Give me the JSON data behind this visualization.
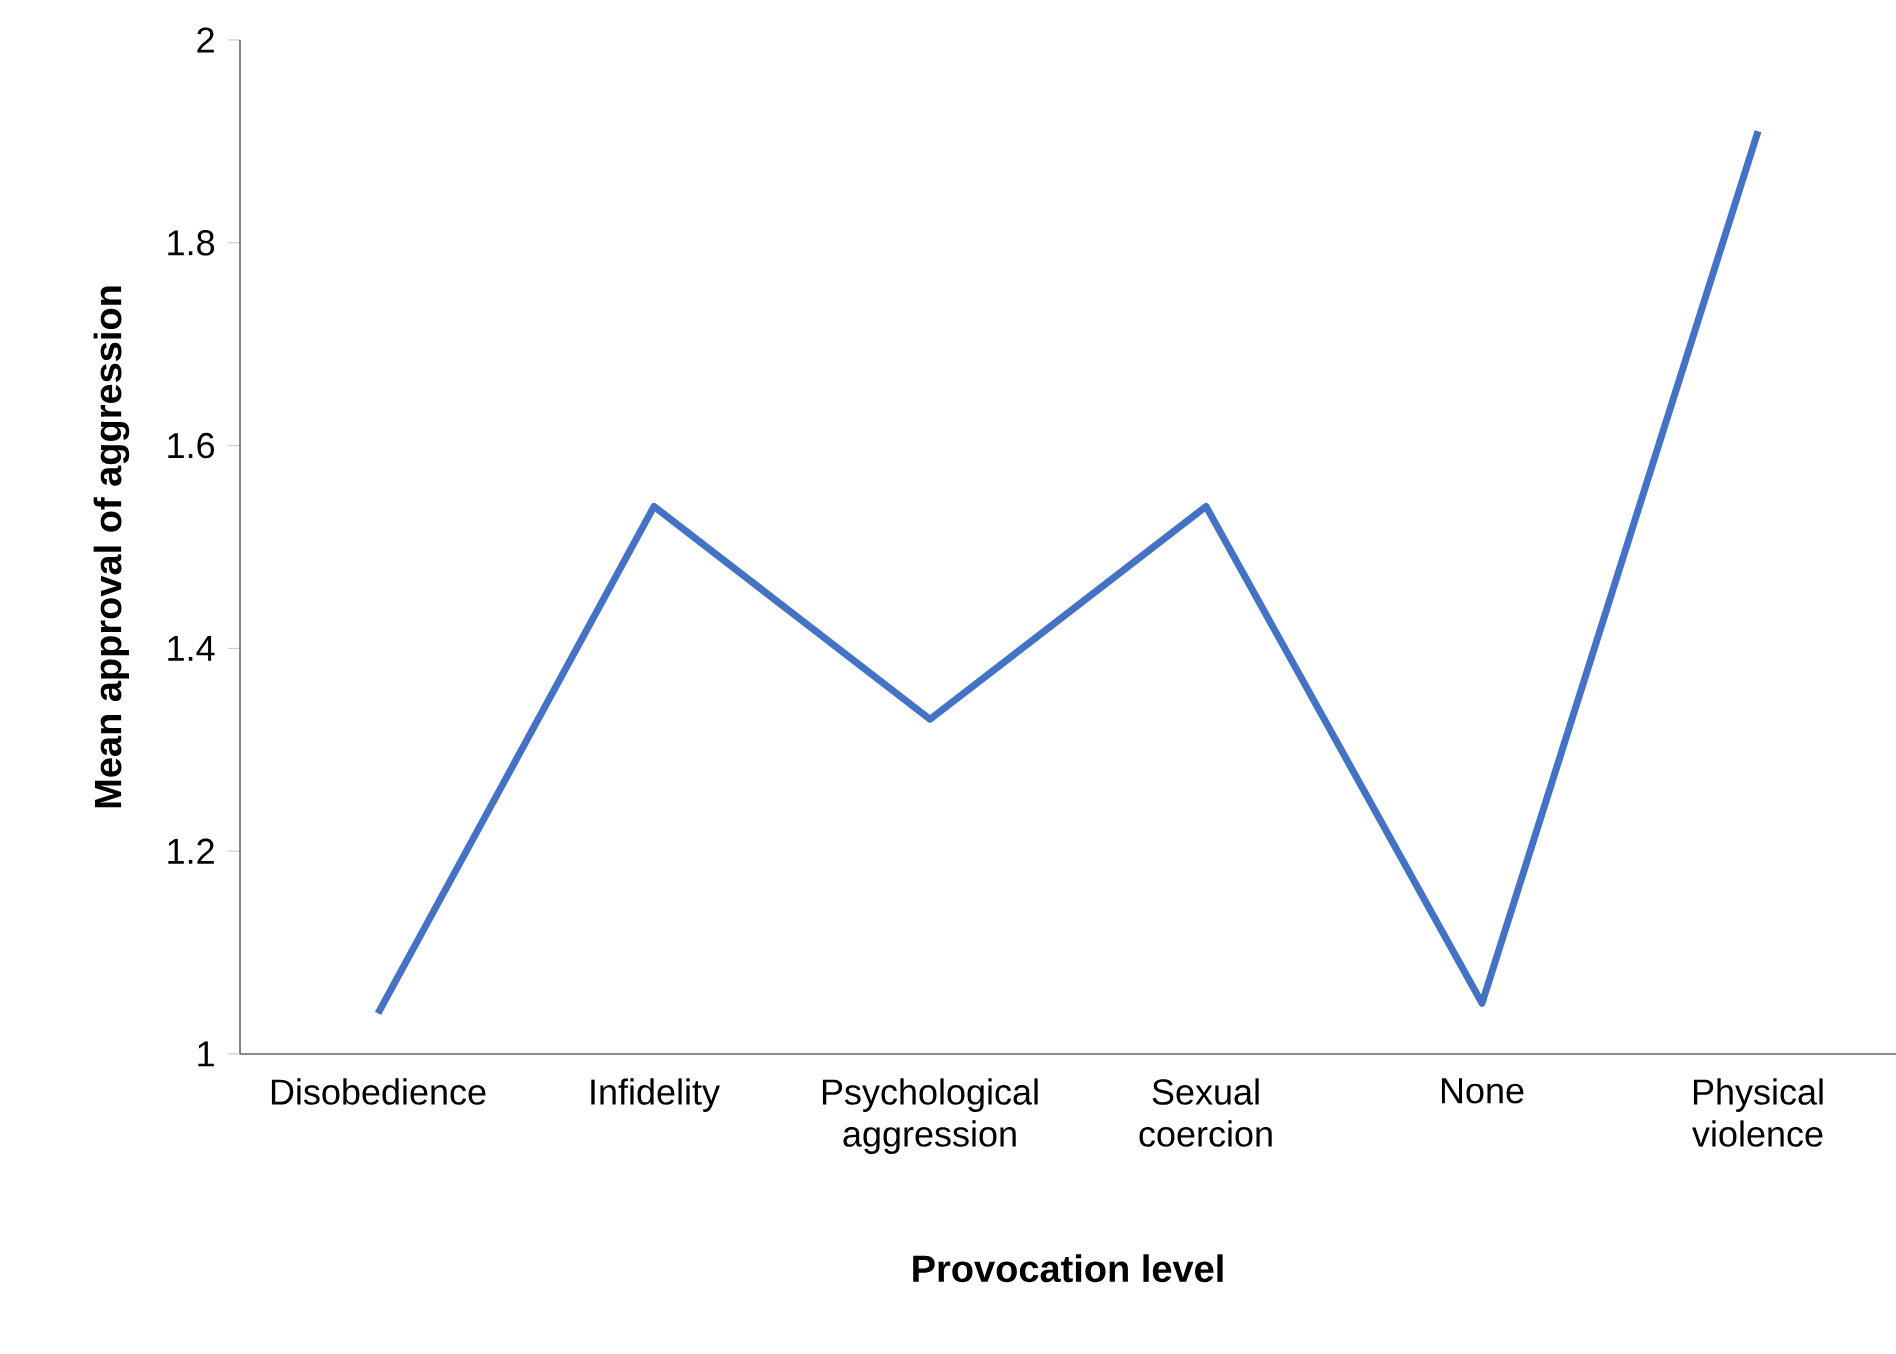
{
  "chart_data": {
    "type": "line",
    "xlabel": "Provocation level",
    "ylabel": "Mean approval of aggression",
    "categories": [
      "Disobedience",
      "Infidelity",
      "Psychological aggression",
      "Sexual coercion",
      "None",
      "Physical violence"
    ],
    "series": [
      {
        "color": "#4472c4",
        "values": [
          1.04,
          1.54,
          1.33,
          1.54,
          1.05,
          1.91
        ]
      }
    ],
    "ylim": [
      1,
      2
    ],
    "yticks": [
      1,
      1.2,
      1.4,
      1.6,
      1.8,
      2
    ],
    "grid": false,
    "marker": "none",
    "line_style": "solid"
  }
}
